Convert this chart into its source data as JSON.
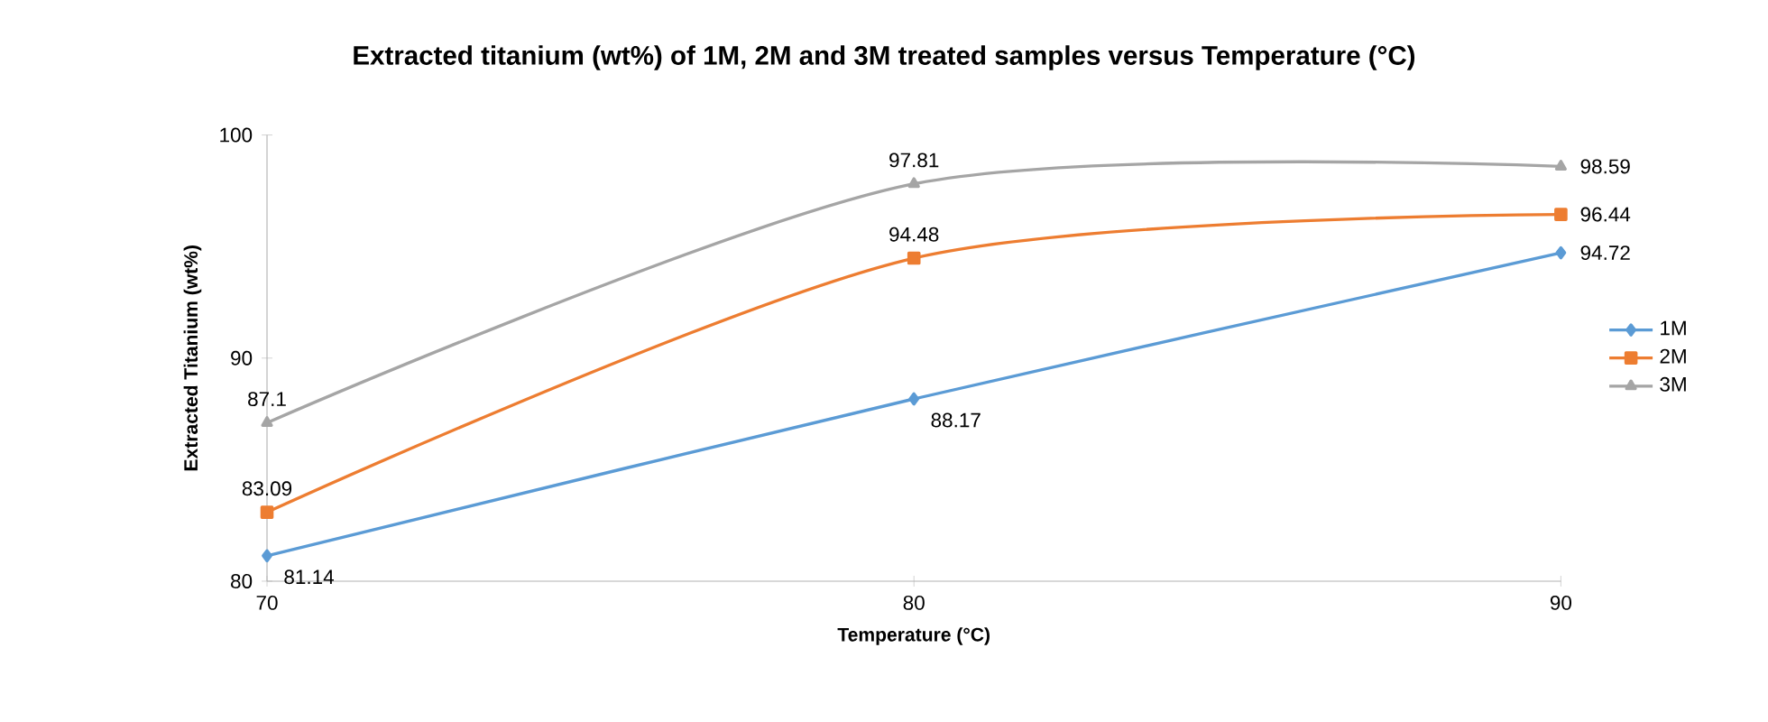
{
  "chart_data": {
    "type": "line",
    "title": "Extracted titanium (wt%) of 1M, 2M and 3M treated samples versus Temperature (°C)",
    "xlabel": "Temperature (°C)",
    "ylabel": "Extracted Titanium (wt%)",
    "x": [
      70,
      80,
      90
    ],
    "xlim": [
      70,
      90
    ],
    "xticks": [
      70,
      80,
      90
    ],
    "ylim": [
      80,
      100
    ],
    "yticks": [
      80,
      90,
      100
    ],
    "legend": "right",
    "data_labels": true,
    "grid": false,
    "series": [
      {
        "name": "1M",
        "color": "#5b9bd5",
        "marker": "diamond",
        "values": [
          81.14,
          88.17,
          94.72
        ]
      },
      {
        "name": "2M",
        "color": "#ed7d31",
        "marker": "square",
        "values": [
          83.09,
          94.48,
          96.44
        ]
      },
      {
        "name": "3M",
        "color": "#a5a5a5",
        "marker": "triangle",
        "values": [
          87.1,
          97.81,
          98.59
        ]
      }
    ]
  }
}
